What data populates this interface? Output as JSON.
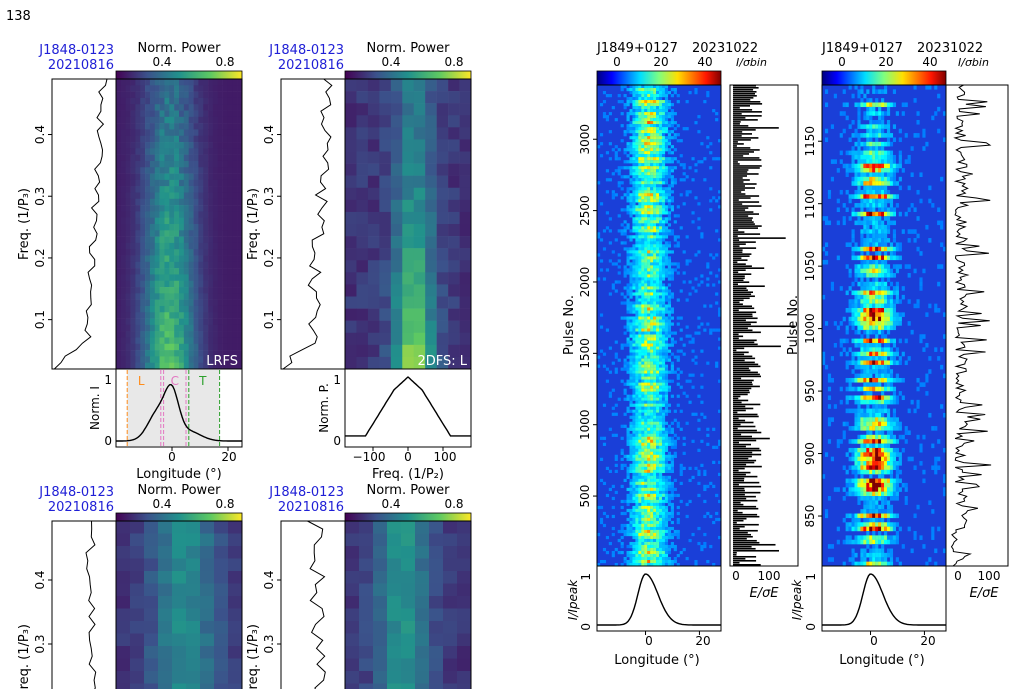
{
  "page_number": "138",
  "chart_data": [
    {
      "id": "tl",
      "type": "heatmap",
      "kind": "LRFS",
      "source_name": "J1848-0123",
      "date": "20210816",
      "colorbar_label": "Norm. Power",
      "colorbar_ticks": [
        "0.4",
        "0.8"
      ],
      "ylabel": "Freq. (1/P₃)",
      "ylim": [
        0.02,
        0.49
      ],
      "yticks": [
        "0.1",
        "0.2",
        "0.3",
        "0.4"
      ],
      "panel_tag": "LRFS",
      "profile": {
        "ylabel": "Norm. I",
        "yticks": [
          "0",
          "1"
        ],
        "xlabel": "Longitude (°)",
        "xlim": [
          -20,
          25
        ],
        "xticks": [
          "0",
          "20"
        ],
        "component_labels": [
          "L",
          "C",
          "T"
        ],
        "component_colors": [
          "#ff8c1a",
          "#e377c2",
          "#2ca02c"
        ]
      }
    },
    {
      "id": "tr",
      "type": "heatmap",
      "kind": "2DFS",
      "source_name": "J1848-0123",
      "date": "20210816",
      "colorbar_label": "Norm. Power",
      "colorbar_ticks": [
        "0.4",
        "0.8"
      ],
      "ylabel": "Freq. (1/P₃)",
      "ylim": [
        0.02,
        0.49
      ],
      "yticks": [
        "0.1",
        "0.2",
        "0.3",
        "0.4"
      ],
      "panel_tag": "2DFS: L",
      "profile": {
        "ylabel": "Norm. P.",
        "yticks": [
          "0",
          "1"
        ],
        "xlabel": "Freq. (1/P₂)",
        "xlim": [
          -180,
          180
        ],
        "xticks": [
          "−100",
          "0",
          "100"
        ]
      }
    },
    {
      "id": "bl",
      "type": "heatmap",
      "kind": "LRFS",
      "source_name": "J1848-0123",
      "date": "20210816",
      "colorbar_label": "Norm. Power",
      "colorbar_ticks": [
        "0.4",
        "0.8"
      ],
      "ylabel": "Freq. (1/P₃)",
      "yticks": [
        "0.3",
        "0.4"
      ]
    },
    {
      "id": "br",
      "type": "heatmap",
      "kind": "2DFS",
      "source_name": "J1848-0123",
      "date": "20210816",
      "colorbar_label": "Norm. Power",
      "colorbar_ticks": [
        "0.4",
        "0.8"
      ],
      "ylabel": "Freq. (1/P₃)",
      "yticks": [
        "0.3",
        "0.4"
      ]
    },
    {
      "id": "sp1",
      "type": "heatmap",
      "kind": "single-pulse stack",
      "source_name": "J1849+0127",
      "date": "20231022",
      "colorbar_label": "I/σbin",
      "colorbar_ticks": [
        "0",
        "20",
        "40"
      ],
      "ylabel": "Pulse No.",
      "ylim": [
        10,
        3380
      ],
      "yticks": [
        500,
        1000,
        1500,
        2000,
        2500,
        3000
      ],
      "side_xlabel": "E/σE",
      "side_xticks": [
        "0",
        "100"
      ],
      "profile": {
        "ylabel": "I/Ipeak",
        "yticks": [
          "0",
          "1"
        ],
        "xlabel": "Longitude (°)",
        "xlim": [
          -18,
          28
        ],
        "xticks": [
          "0",
          "20"
        ]
      }
    },
    {
      "id": "sp2",
      "type": "heatmap",
      "kind": "single-pulse stack",
      "source_name": "J1849+0127",
      "date": "20231022",
      "colorbar_label": "I/σbin",
      "colorbar_ticks": [
        "0",
        "20",
        "40"
      ],
      "ylabel": "Pulse No.",
      "ylim": [
        810,
        1195
      ],
      "yticks": [
        850,
        900,
        950,
        1000,
        1050,
        1100,
        1150
      ],
      "side_xlabel": "E/σE",
      "side_xticks": [
        "0",
        "100"
      ],
      "profile": {
        "ylabel": "I/Ipeak",
        "yticks": [
          "0",
          "1"
        ],
        "xlabel": "Longitude (°)",
        "xlim": [
          -18,
          28
        ],
        "xticks": [
          "0",
          "20"
        ]
      }
    }
  ]
}
